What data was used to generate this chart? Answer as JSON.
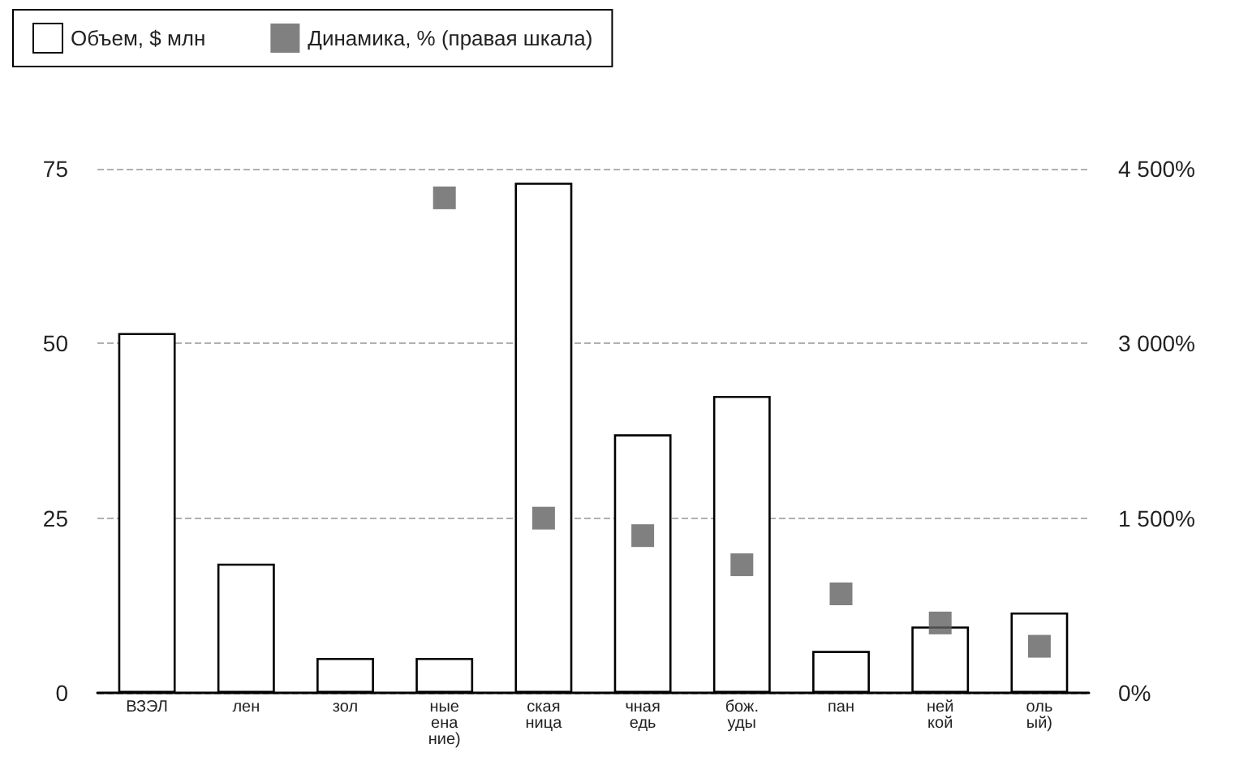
{
  "chart_data": {
    "type": "bar",
    "categories": [
      "ВЗЭЛ",
      "лен",
      "зол",
      "ные\nена\nние)",
      "ская\nница",
      "чная\nедь",
      "бож.\nуды",
      "пан",
      "ней\nкой",
      "оль\nый)"
    ],
    "series": [
      {
        "name": "Объем, $ млн",
        "color": "#ffffff",
        "values": [
          51.5,
          18.5,
          5,
          5,
          73,
          37,
          42.5,
          6,
          9.5,
          11.5
        ]
      },
      {
        "name": "Динамика, % (правая шкала)",
        "type": "scatter",
        "axis": "y2",
        "color": "#606060",
        "values": [
          null,
          null,
          null,
          4250,
          1500,
          1350,
          1100,
          850,
          600,
          400
        ]
      }
    ],
    "ylim": [
      0,
      75
    ],
    "yticks": [
      0,
      25,
      50,
      75
    ],
    "y2lim": [
      0,
      4500
    ],
    "y2ticks": [
      {
        "value": 0,
        "label": "0%"
      },
      {
        "value": 1500,
        "label": "1 500%"
      },
      {
        "value": 3000,
        "label": "3 000%"
      },
      {
        "value": 4500,
        "label": "4 500%"
      }
    ],
    "grid": "y",
    "legend": "top left",
    "marker": "square"
  }
}
